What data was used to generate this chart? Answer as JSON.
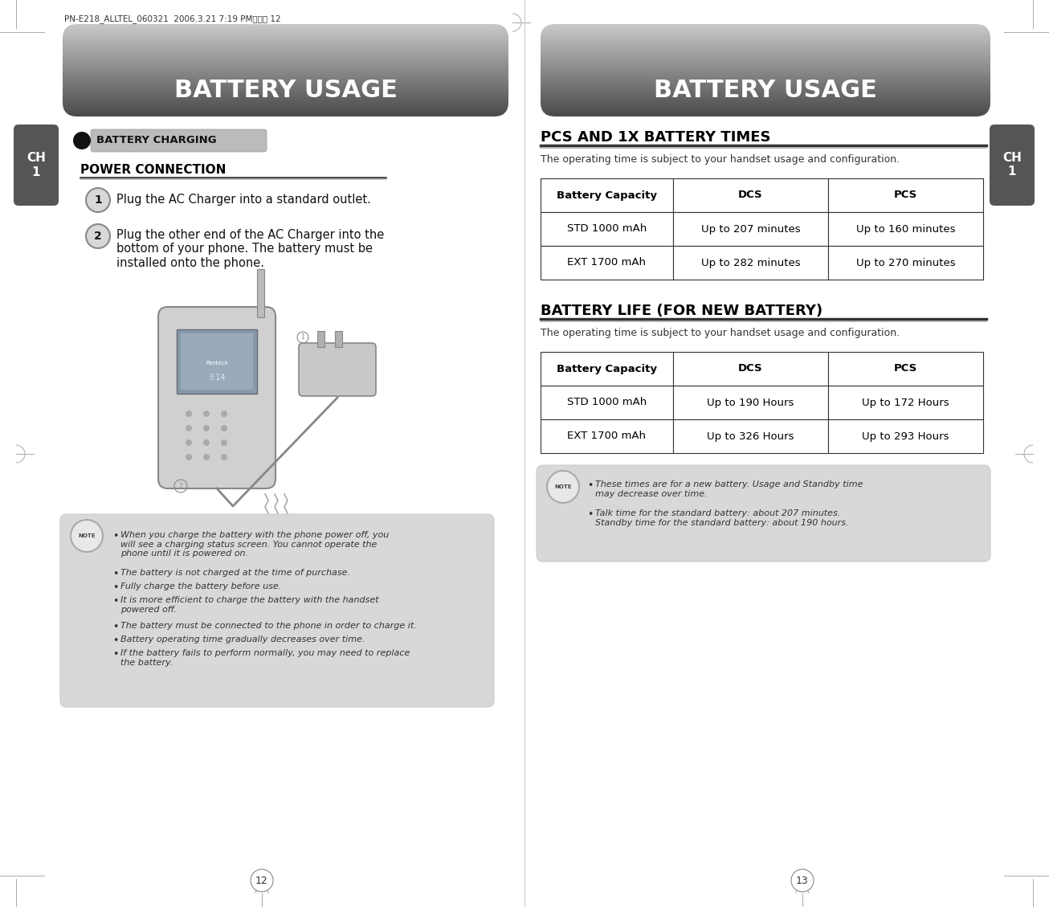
{
  "page_bg": "#ffffff",
  "header_text": "BATTERY USAGE",
  "header_text_color": "#ffffff",
  "left_page_num": "12",
  "right_page_num": "13",
  "ch_label": "CH\n1",
  "ch_bg": "#555555",
  "ch_text_color": "#ffffff",
  "section_label_text": "BATTERY CHARGING",
  "power_connection_title": "POWER CONNECTION",
  "step1_text": "Plug the AC Charger into a standard outlet.",
  "step2_text": "Plug the other end of the AC Charger into the\nbottom of your phone. The battery must be\ninstalled onto the phone.",
  "note_bg": "#d8d8d8",
  "note_bullets_left": [
    "When you charge the battery with the phone power off, you\nwill see a charging status screen. You cannot operate the\nphone until it is powered on.",
    "The battery is not charged at the time of purchase.",
    "Fully charge the battery before use.",
    "It is more efficient to charge the battery with the handset\npowered off.",
    "The battery must be connected to the phone in order to charge it.",
    "Battery operating time gradually decreases over time.",
    "If the battery fails to perform normally, you may need to replace\nthe battery."
  ],
  "right_section1_title": "PCS AND 1X BATTERY TIMES",
  "right_section1_subtitle": "The operating time is subject to your handset usage and configuration.",
  "table1_headers": [
    "Battery Capacity",
    "DCS",
    "PCS"
  ],
  "table1_rows": [
    [
      "STD 1000 mAh",
      "Up to 207 minutes",
      "Up to 160 minutes"
    ],
    [
      "EXT 1700 mAh",
      "Up to 282 minutes",
      "Up to 270 minutes"
    ]
  ],
  "right_section2_title": "BATTERY LIFE (FOR NEW BATTERY)",
  "right_section2_subtitle": "The operating time is subject to your handset usage and configuration.",
  "table2_headers": [
    "Battery Capacity",
    "DCS",
    "PCS"
  ],
  "table2_rows": [
    [
      "STD 1000 mAh",
      "Up to 190 Hours",
      "Up to 172 Hours"
    ],
    [
      "EXT 1700 mAh",
      "Up to 326 Hours",
      "Up to 293 Hours"
    ]
  ],
  "note_bullets_right": [
    "These times are for a new battery. Usage and Standby time\nmay decrease over time.",
    "Talk time for the standard battery: about 207 minutes.\nStandby time for the standard battery: about 190 hours."
  ],
  "file_header_text": "PN-E218_ALLTEL_060321  2006.3.21 7:19 PM페이지 12",
  "table_border_color": "#333333"
}
